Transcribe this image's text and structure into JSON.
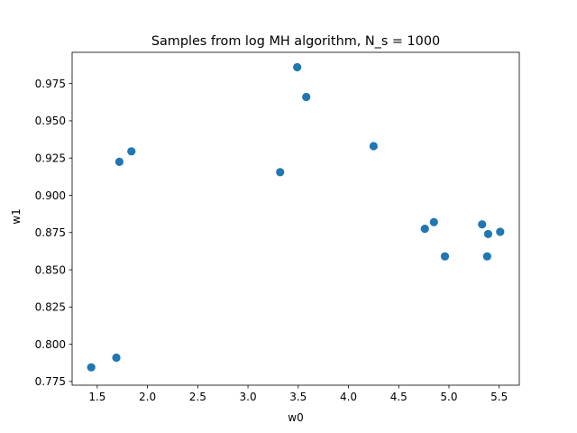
{
  "chart_data": {
    "type": "scatter",
    "title": "Samples from log MH algorithm, N_s = 1000",
    "xlabel": "w0",
    "ylabel": "w1",
    "xlim": [
      1.25,
      5.7
    ],
    "ylim": [
      0.7725,
      0.996
    ],
    "xticks": [
      1.5,
      2.0,
      2.5,
      3.0,
      3.5,
      4.0,
      4.5,
      5.0,
      5.5
    ],
    "xtick_labels": [
      "1.5",
      "2.0",
      "2.5",
      "3.0",
      "3.5",
      "4.0",
      "4.5",
      "5.0",
      "5.5"
    ],
    "yticks": [
      0.775,
      0.8,
      0.825,
      0.85,
      0.875,
      0.9,
      0.925,
      0.95,
      0.975
    ],
    "ytick_labels": [
      "0.775",
      "0.800",
      "0.825",
      "0.850",
      "0.875",
      "0.900",
      "0.925",
      "0.950",
      "0.975"
    ],
    "grid": false,
    "marker_color": "#1f77b4",
    "points": [
      {
        "x": 1.44,
        "y": 0.7845
      },
      {
        "x": 1.69,
        "y": 0.791
      },
      {
        "x": 1.72,
        "y": 0.9225
      },
      {
        "x": 1.84,
        "y": 0.9295
      },
      {
        "x": 3.32,
        "y": 0.9155
      },
      {
        "x": 3.49,
        "y": 0.986
      },
      {
        "x": 3.58,
        "y": 0.966
      },
      {
        "x": 4.25,
        "y": 0.933
      },
      {
        "x": 4.76,
        "y": 0.8775
      },
      {
        "x": 4.85,
        "y": 0.882
      },
      {
        "x": 4.96,
        "y": 0.859
      },
      {
        "x": 5.33,
        "y": 0.8805
      },
      {
        "x": 5.38,
        "y": 0.859
      },
      {
        "x": 5.39,
        "y": 0.874
      },
      {
        "x": 5.51,
        "y": 0.8755
      }
    ]
  }
}
